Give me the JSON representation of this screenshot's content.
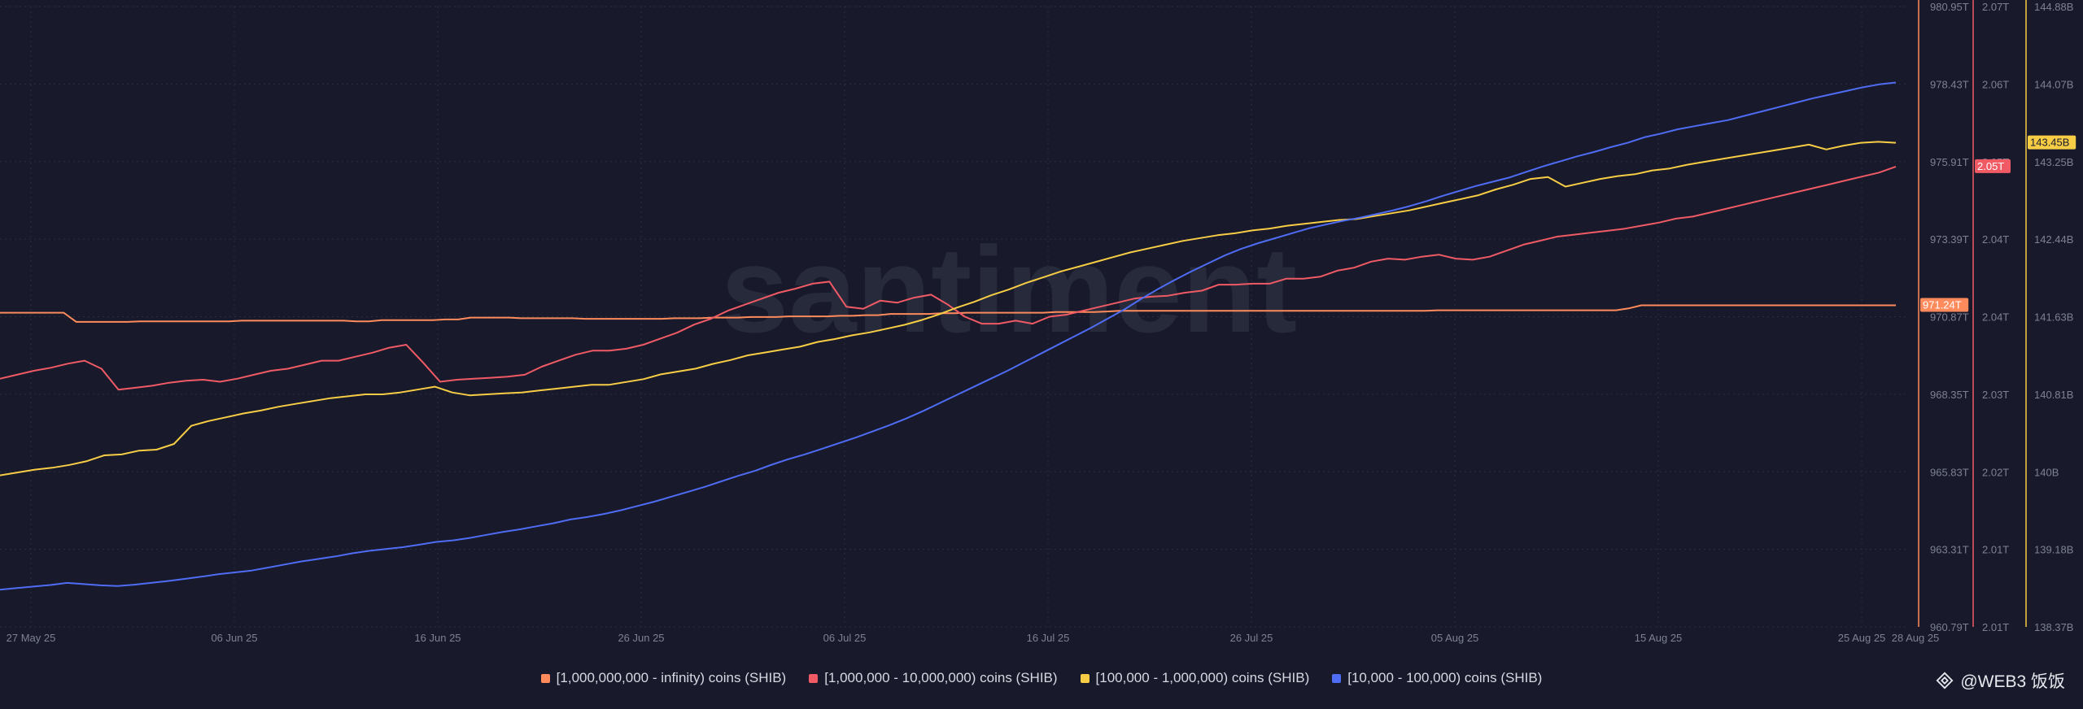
{
  "colors": {
    "background": "#181a2b",
    "grid": "#2a2d40",
    "axis_text": "#7d8192",
    "watermark": "#262a3b"
  },
  "watermark": "santiment",
  "brand": {
    "text": "@WEB3 饭饭",
    "icon": "binance-diamond-icon"
  },
  "legend": [
    {
      "label": "[1,000,000,000 - infinity) coins (SHIB)",
      "color": "#ff8a5b"
    },
    {
      "label": "[1,000,000 - 10,000,000) coins (SHIB)",
      "color": "#ef5a65"
    },
    {
      "label": "[100,000  - 1,000,000) coins (SHIB)",
      "color": "#f7cd45"
    },
    {
      "label": "[10,000 - 100,000) coins (SHIB)",
      "color": "#4f6cf5"
    }
  ],
  "chart_data": {
    "type": "line",
    "x_ticks": [
      "27 May 25",
      "06 Jun 25",
      "16 Jun 25",
      "26 Jun 25",
      "06 Jul 25",
      "16 Jul 25",
      "26 Jul 25",
      "05 Aug 25",
      "15 Aug 25",
      "25 Aug 25",
      "28 Aug 25"
    ],
    "grid": true,
    "legend_position": "bottom",
    "axes": [
      {
        "id": "axis1",
        "color": "#ff8a5b",
        "ticks": [
          "980.95T",
          "978.43T",
          "975.91T",
          "973.39T",
          "970.87T",
          "968.35T",
          "965.83T",
          "963.31T",
          "960.79T"
        ],
        "range": [
          960.79,
          980.95
        ],
        "unit": "T",
        "current_label": "971.24T"
      },
      {
        "id": "axis2",
        "color": "#ef5a65",
        "ticks": [
          "2.07T",
          "2.06T",
          "2.05T",
          "2.04T",
          "2.04T",
          "2.03T",
          "2.02T",
          "2.01T",
          "2.01T"
        ],
        "range": [
          2.006,
          2.068
        ],
        "unit": "T",
        "current_label": "2.05T"
      },
      {
        "id": "axis3",
        "color": "#f7cd45",
        "ticks": [
          "144.88B",
          "144.07B",
          "143.25B",
          "142.44B",
          "141.63B",
          "140.81B",
          "140B",
          "139.18B",
          "138.37B"
        ],
        "range": [
          138.37,
          144.88
        ],
        "unit": "B",
        "current_label": "143.45B"
      }
    ],
    "series": [
      {
        "name": "[1,000,000,000 - infinity) coins (SHIB)",
        "color": "#ff8a5b",
        "axis": "axis1",
        "values": [
          971.0,
          971.0,
          971.0,
          971.0,
          971.0,
          971.0,
          970.7,
          970.7,
          970.7,
          970.7,
          970.7,
          970.72,
          970.72,
          970.72,
          970.72,
          970.72,
          970.72,
          970.72,
          970.72,
          970.74,
          970.74,
          970.74,
          970.74,
          970.74,
          970.74,
          970.74,
          970.74,
          970.74,
          970.72,
          970.72,
          970.76,
          970.76,
          970.76,
          970.76,
          970.76,
          970.78,
          970.78,
          970.84,
          970.84,
          970.84,
          970.84,
          970.82,
          970.82,
          970.82,
          970.82,
          970.82,
          970.8,
          970.8,
          970.8,
          970.8,
          970.8,
          970.8,
          970.8,
          970.82,
          970.82,
          970.82,
          970.84,
          970.84,
          970.84,
          970.86,
          970.86,
          970.86,
          970.88,
          970.88,
          970.88,
          970.88,
          970.9,
          970.9,
          970.92,
          970.92,
          970.96,
          970.96,
          970.96,
          970.96,
          970.98,
          970.98,
          971.0,
          971.0,
          971.0,
          971.0,
          971.0,
          971.0,
          971.0,
          971.02,
          971.02,
          971.02,
          971.02,
          971.04,
          971.06,
          971.06,
          971.06,
          971.06,
          971.06,
          971.06,
          971.06,
          971.06,
          971.06,
          971.06,
          971.06,
          971.06,
          971.06,
          971.06,
          971.06,
          971.06,
          971.06,
          971.06,
          971.06,
          971.06,
          971.06,
          971.06,
          971.06,
          971.06,
          971.06,
          971.08,
          971.08,
          971.08,
          971.08,
          971.08,
          971.08,
          971.08,
          971.08,
          971.08,
          971.08,
          971.08,
          971.08,
          971.08,
          971.08,
          971.08,
          971.14,
          971.24,
          971.24,
          971.24,
          971.24,
          971.24,
          971.24,
          971.24,
          971.24,
          971.24,
          971.24,
          971.24,
          971.24,
          971.24,
          971.24,
          971.24,
          971.24,
          971.24,
          971.24,
          971.24,
          971.24,
          971.24
        ]
      },
      {
        "name": "[1,000,000 - 10,000,000) coins (SHIB)",
        "color": "#ef5a65",
        "axis": "axis2",
        "values": [
          2.0308,
          2.0312,
          2.0316,
          2.0319,
          2.0323,
          2.0326,
          2.0318,
          2.0297,
          2.0299,
          2.0301,
          2.0304,
          2.0306,
          2.0307,
          2.0305,
          2.0308,
          2.0312,
          2.0316,
          2.0318,
          2.0322,
          2.0326,
          2.0326,
          2.033,
          2.0334,
          2.0339,
          2.0342,
          2.0324,
          2.0305,
          2.0307,
          2.0308,
          2.0309,
          2.031,
          2.0312,
          2.032,
          2.0326,
          2.0332,
          2.0336,
          2.0336,
          2.0338,
          2.0342,
          2.0348,
          2.0354,
          2.0362,
          2.0368,
          2.0376,
          2.0382,
          2.0388,
          2.0394,
          2.0398,
          2.0403,
          2.0405,
          2.038,
          2.0378,
          2.0386,
          2.0384,
          2.0389,
          2.0392,
          2.0382,
          2.037,
          2.0363,
          2.0363,
          2.0366,
          2.0363,
          2.037,
          2.0372,
          2.0376,
          2.038,
          2.0384,
          2.0388,
          2.039,
          2.0391,
          2.0394,
          2.0396,
          2.0402,
          2.0402,
          2.0403,
          2.0403,
          2.0408,
          2.0408,
          2.041,
          2.0416,
          2.0419,
          2.0425,
          2.0428,
          2.0427,
          2.043,
          2.0432,
          2.0428,
          2.0427,
          2.043,
          2.0436,
          2.0442,
          2.0446,
          2.045,
          2.0452,
          2.0454,
          2.0456,
          2.0458,
          2.0461,
          2.0464,
          2.0468,
          2.047,
          2.0474,
          2.0478,
          2.0482,
          2.0486,
          2.049,
          2.0494,
          2.0498,
          2.0502,
          2.0506,
          2.051,
          2.0514,
          2.052
        ]
      },
      {
        "name": "[100,000  - 1,000,000) coins (SHIB)",
        "color": "#f7cd45",
        "axis": "axis3",
        "values": [
          139.96,
          139.99,
          140.02,
          140.04,
          140.07,
          140.11,
          140.17,
          140.18,
          140.22,
          140.23,
          140.29,
          140.48,
          140.53,
          140.57,
          140.61,
          140.64,
          140.68,
          140.71,
          140.74,
          140.77,
          140.79,
          140.81,
          140.81,
          140.83,
          140.86,
          140.89,
          140.83,
          140.8,
          140.81,
          140.82,
          140.83,
          140.85,
          140.87,
          140.89,
          140.91,
          140.91,
          140.94,
          140.97,
          141.02,
          141.05,
          141.08,
          141.13,
          141.17,
          141.22,
          141.25,
          141.28,
          141.31,
          141.36,
          141.39,
          141.43,
          141.46,
          141.5,
          141.54,
          141.59,
          141.65,
          141.72,
          141.78,
          141.85,
          141.91,
          141.98,
          142.04,
          142.1,
          142.15,
          142.2,
          142.25,
          142.3,
          142.34,
          142.38,
          142.42,
          142.45,
          142.48,
          142.5,
          142.53,
          142.55,
          142.58,
          142.6,
          142.62,
          142.64,
          142.65,
          142.68,
          142.71,
          142.74,
          142.78,
          142.82,
          142.86,
          142.9,
          142.96,
          143.01,
          143.07,
          143.09,
          142.99,
          143.03,
          143.07,
          143.1,
          143.12,
          143.16,
          143.18,
          143.22,
          143.25,
          143.28,
          143.31,
          143.34,
          143.37,
          143.4,
          143.43,
          143.38,
          143.42,
          143.45,
          143.46,
          143.45
        ]
      },
      {
        "name": "[10,000 - 100,000) coins (SHIB)",
        "color": "#4f6cf5",
        "axis": "axis1",
        "values": [
          962.0,
          962.05,
          962.1,
          962.15,
          962.22,
          962.18,
          962.14,
          962.12,
          962.16,
          962.22,
          962.28,
          962.35,
          962.42,
          962.5,
          962.56,
          962.62,
          962.72,
          962.82,
          962.92,
          963.0,
          963.08,
          963.18,
          963.26,
          963.32,
          963.38,
          963.46,
          963.55,
          963.6,
          963.68,
          963.78,
          963.88,
          963.96,
          964.06,
          964.16,
          964.28,
          964.36,
          964.46,
          964.58,
          964.72,
          964.86,
          965.02,
          965.18,
          965.34,
          965.52,
          965.7,
          965.86,
          966.06,
          966.24,
          966.4,
          966.58,
          966.76,
          966.94,
          967.14,
          967.34,
          967.56,
          967.8,
          968.06,
          968.32,
          968.58,
          968.84,
          969.1,
          969.38,
          969.66,
          969.94,
          970.22,
          970.5,
          970.8,
          971.1,
          971.44,
          971.76,
          972.06,
          972.34,
          972.6,
          972.86,
          973.08,
          973.26,
          973.42,
          973.58,
          973.74,
          973.86,
          973.98,
          974.08,
          974.2,
          974.32,
          974.46,
          974.62,
          974.8,
          974.96,
          975.12,
          975.26,
          975.4,
          975.58,
          975.76,
          975.92,
          976.08,
          976.22,
          976.38,
          976.52,
          976.7,
          976.82,
          976.96,
          977.06,
          977.16,
          977.26,
          977.4,
          977.54,
          977.68,
          977.82,
          977.96,
          978.08,
          978.2,
          978.32,
          978.42,
          978.48
        ]
      }
    ]
  }
}
